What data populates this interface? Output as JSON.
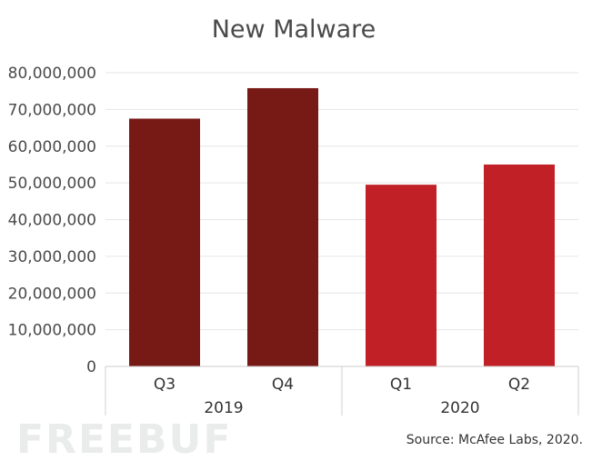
{
  "chart_data": {
    "type": "bar",
    "title": "New Malware",
    "categories": [
      "Q3",
      "Q4",
      "Q1",
      "Q2"
    ],
    "groups": [
      {
        "label": "2019",
        "categories": [
          "Q3",
          "Q4"
        ]
      },
      {
        "label": "2020",
        "categories": [
          "Q1",
          "Q2"
        ]
      }
    ],
    "values": [
      67500000,
      75800000,
      49500000,
      55000000
    ],
    "colors": [
      "#771915",
      "#771915",
      "#c02026",
      "#c02026"
    ],
    "ylim": [
      0,
      80000000
    ],
    "yticks": [
      "0",
      "10,000,000",
      "20,000,000",
      "30,000,000",
      "40,000,000",
      "50,000,000",
      "60,000,000",
      "70,000,000",
      "80,000,000"
    ],
    "grid": true,
    "source": "Source: McAfee Labs, 2020."
  },
  "watermark": "FREEBUF"
}
